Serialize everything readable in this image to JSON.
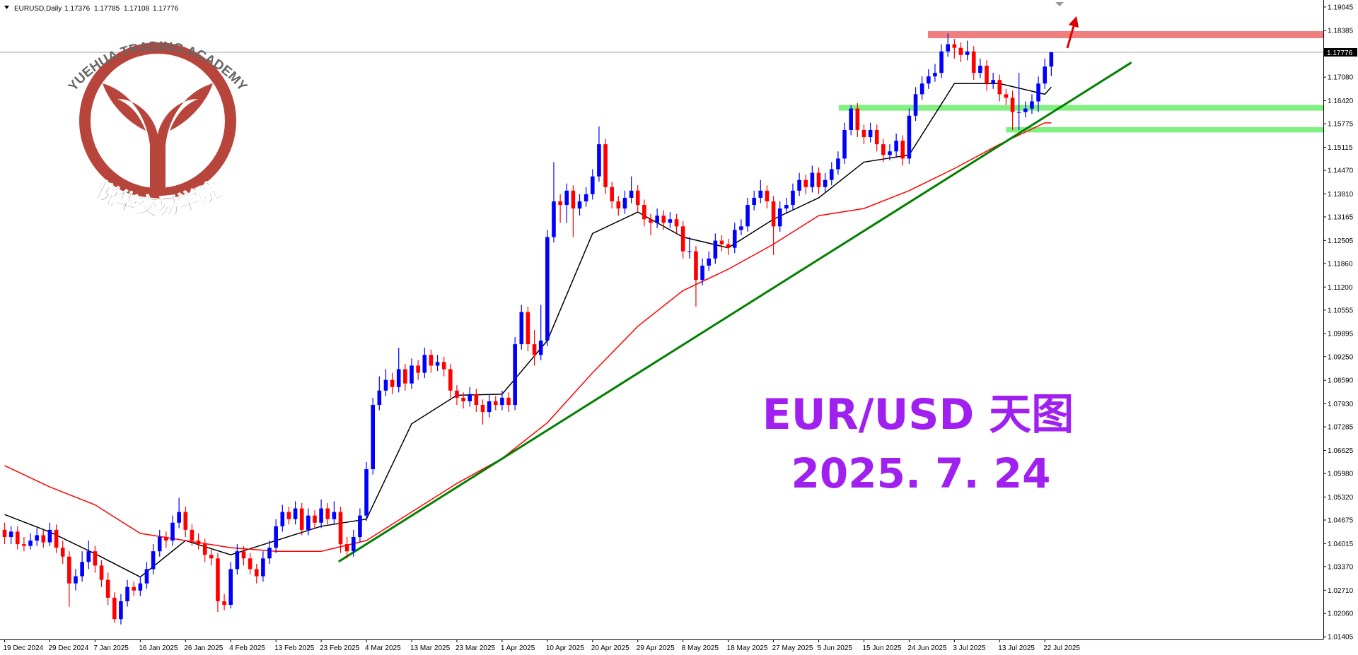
{
  "chart_data": {
    "type": "candlestick",
    "symbol_label": "EURUSD,Daily",
    "up_color": "#0000ff",
    "down_color": "#ff0000",
    "ylim": [
      1.0133,
      1.1924
    ],
    "yticks": [
      1.19045,
      1.18385,
      {
        "value": 1.1708,
        "label": "1.17080"
      },
      {
        "value": 1.1642,
        "label": "1.16420"
      },
      1.15775,
      1.15115,
      {
        "value": 1.1447,
        "label": "1.14470"
      },
      {
        "value": 1.1381,
        "label": "1.13810"
      },
      1.13165,
      1.12505,
      {
        "value": 1.1186,
        "label": "1.11860"
      },
      {
        "value": 1.112,
        "label": "1.11200"
      },
      1.10555,
      1.09895,
      {
        "value": 1.0925,
        "label": "1.09250"
      },
      {
        "value": 1.0859,
        "label": "1.08590"
      },
      {
        "value": 1.0793,
        "label": "1.07930"
      },
      1.07285,
      1.06625,
      {
        "value": 1.0598,
        "label": "1.05980"
      },
      {
        "value": 1.0532,
        "label": "1.05320"
      },
      1.04675,
      1.04015,
      {
        "value": 1.0337,
        "label": "1.03370"
      },
      {
        "value": 1.0271,
        "label": "1.02710"
      },
      {
        "value": 1.0206,
        "label": "1.02060"
      },
      1.01405
    ],
    "categories": [
      "19 Dec 2024",
      null,
      null,
      null,
      null,
      null,
      null,
      "29 Dec 2024",
      null,
      null,
      null,
      null,
      null,
      null,
      "7 Jan 2025",
      null,
      null,
      null,
      null,
      null,
      null,
      "16 Jan 2025",
      null,
      null,
      null,
      null,
      null,
      null,
      "26 Jan 2025",
      null,
      null,
      null,
      null,
      null,
      null,
      "4 Feb 2025",
      null,
      null,
      null,
      null,
      null,
      null,
      "13 Feb 2025",
      null,
      null,
      null,
      null,
      null,
      null,
      "23 Feb 2025",
      null,
      null,
      null,
      null,
      null,
      null,
      "4 Mar 2025",
      null,
      null,
      null,
      null,
      null,
      null,
      "13 Mar 2025",
      null,
      null,
      null,
      null,
      null,
      null,
      "23 Mar 2025",
      null,
      null,
      null,
      null,
      null,
      null,
      "1 Apr 2025",
      null,
      null,
      null,
      null,
      null,
      null,
      "10 Apr 2025",
      null,
      null,
      null,
      null,
      null,
      null,
      "20 Apr 2025",
      null,
      null,
      null,
      null,
      null,
      null,
      "29 Apr 2025",
      null,
      null,
      null,
      null,
      null,
      null,
      "8 May 2025",
      null,
      null,
      null,
      null,
      null,
      null,
      "18 May 2025",
      null,
      null,
      null,
      null,
      null,
      null,
      "27 May 2025",
      null,
      null,
      null,
      null,
      null,
      null,
      "5 Jun 2025",
      null,
      null,
      null,
      null,
      null,
      null,
      "15 Jun 2025",
      null,
      null,
      null,
      null,
      null,
      null,
      "24 Jun 2025",
      null,
      null,
      null,
      null,
      null,
      null,
      "3 Jul 2025",
      null,
      null,
      null,
      null,
      null,
      null,
      "13 Jul 2025",
      null,
      null,
      null,
      null,
      null,
      null,
      "22 Jul 2025",
      null
    ],
    "candles": [
      [
        1.044,
        1.046,
        1.04,
        1.042
      ],
      [
        1.042,
        1.045,
        1.04,
        1.0435
      ],
      [
        1.0435,
        1.045,
        1.0385,
        1.04
      ],
      [
        1.04,
        1.042,
        1.038,
        1.0395
      ],
      [
        1.0395,
        1.043,
        1.0385,
        1.041
      ],
      [
        1.041,
        1.0445,
        1.0395,
        1.0425
      ],
      [
        1.0425,
        1.044,
        1.039,
        1.0405
      ],
      [
        1.0405,
        1.046,
        1.0395,
        1.044
      ],
      [
        1.044,
        1.0455,
        1.0375,
        1.039
      ],
      [
        1.039,
        1.041,
        1.0345,
        1.0365
      ],
      [
        1.0365,
        1.038,
        1.0225,
        1.029
      ],
      [
        1.029,
        1.033,
        1.027,
        1.031
      ],
      [
        1.031,
        1.038,
        1.0295,
        1.035
      ],
      [
        1.035,
        1.041,
        1.033,
        1.038
      ],
      [
        1.038,
        1.0395,
        1.032,
        1.034
      ],
      [
        1.034,
        1.0355,
        1.028,
        1.03
      ],
      [
        1.03,
        1.032,
        1.023,
        1.025
      ],
      [
        1.025,
        1.0265,
        1.018,
        1.019
      ],
      [
        1.019,
        1.026,
        1.0175,
        1.024
      ],
      [
        1.024,
        1.03,
        1.0225,
        1.028
      ],
      [
        1.028,
        1.0295,
        1.0255,
        1.027
      ],
      [
        1.027,
        1.031,
        1.0255,
        1.029
      ],
      [
        1.029,
        1.035,
        1.0275,
        1.033
      ],
      [
        1.033,
        1.04,
        1.0315,
        1.038
      ],
      [
        1.038,
        1.044,
        1.0365,
        1.042
      ],
      [
        1.042,
        1.0435,
        1.039,
        1.041
      ],
      [
        1.041,
        1.048,
        1.0395,
        1.046
      ],
      [
        1.046,
        1.053,
        1.0445,
        1.049
      ],
      [
        1.049,
        1.0505,
        1.042,
        1.044
      ],
      [
        1.044,
        1.0455,
        1.0395,
        1.041
      ],
      [
        1.041,
        1.043,
        1.0385,
        1.04
      ],
      [
        1.04,
        1.0415,
        1.035,
        1.037
      ],
      [
        1.037,
        1.0385,
        1.034,
        1.036
      ],
      [
        1.036,
        1.0375,
        1.021,
        1.024
      ],
      [
        1.024,
        1.026,
        1.0215,
        1.023
      ],
      [
        1.023,
        1.035,
        1.022,
        1.033
      ],
      [
        1.033,
        1.04,
        1.0315,
        1.038
      ],
      [
        1.038,
        1.0395,
        1.034,
        1.036
      ],
      [
        1.036,
        1.0375,
        1.0315,
        1.033
      ],
      [
        1.033,
        1.0345,
        1.029,
        1.031
      ],
      [
        1.031,
        1.038,
        1.0295,
        1.036
      ],
      [
        1.036,
        1.041,
        1.0345,
        1.039
      ],
      [
        1.039,
        1.047,
        1.0375,
        1.045
      ],
      [
        1.045,
        1.051,
        1.0435,
        1.049
      ],
      [
        1.049,
        1.0505,
        1.0455,
        1.047
      ],
      [
        1.047,
        1.052,
        1.0455,
        1.05
      ],
      [
        1.05,
        1.0515,
        1.0425,
        1.044
      ],
      [
        1.044,
        1.05,
        1.0425,
        1.048
      ],
      [
        1.048,
        1.0495,
        1.0445,
        1.046
      ],
      [
        1.046,
        1.0525,
        1.0445,
        1.05
      ],
      [
        1.05,
        1.0515,
        1.0455,
        1.047
      ],
      [
        1.047,
        1.052,
        1.0455,
        1.049
      ],
      [
        1.049,
        1.0505,
        1.0375,
        1.04
      ],
      [
        1.04,
        1.042,
        1.036,
        1.038
      ],
      [
        1.038,
        1.044,
        1.0365,
        1.042
      ],
      [
        1.042,
        1.05,
        1.0405,
        1.048
      ],
      [
        1.048,
        1.063,
        1.0465,
        1.061
      ],
      [
        1.061,
        1.081,
        1.0595,
        1.079
      ],
      [
        1.079,
        1.087,
        1.0775,
        1.083
      ],
      [
        1.083,
        1.089,
        1.0815,
        1.086
      ],
      [
        1.086,
        1.088,
        1.082,
        1.084
      ],
      [
        1.084,
        1.095,
        1.0825,
        1.089
      ],
      [
        1.089,
        1.0905,
        1.083,
        1.085
      ],
      [
        1.085,
        1.092,
        1.0835,
        1.09
      ],
      [
        1.09,
        1.0915,
        1.086,
        1.088
      ],
      [
        1.088,
        1.095,
        1.0865,
        1.093
      ],
      [
        1.093,
        1.0945,
        1.088,
        1.09
      ],
      [
        1.09,
        1.093,
        1.0885,
        1.091
      ],
      [
        1.091,
        1.0925,
        1.087,
        1.089
      ],
      [
        1.089,
        1.0905,
        1.081,
        1.083
      ],
      [
        1.083,
        1.0845,
        1.079,
        1.081
      ],
      [
        1.081,
        1.0825,
        1.078,
        1.08
      ],
      [
        1.08,
        1.084,
        1.0785,
        1.082
      ],
      [
        1.082,
        1.0835,
        1.077,
        1.079
      ],
      [
        1.079,
        1.0805,
        1.0735,
        1.077
      ],
      [
        1.077,
        1.082,
        1.0755,
        1.08
      ],
      [
        1.08,
        1.0815,
        1.0775,
        1.079
      ],
      [
        1.079,
        1.083,
        1.0775,
        1.081
      ],
      [
        1.081,
        1.0825,
        1.077,
        1.079
      ],
      [
        1.079,
        1.098,
        1.0775,
        1.096
      ],
      [
        1.096,
        1.107,
        1.0945,
        1.105
      ],
      [
        1.105,
        1.1065,
        1.094,
        1.096
      ],
      [
        1.096,
        1.1,
        1.09,
        1.093
      ],
      [
        1.093,
        1.107,
        1.0915,
        1.097
      ],
      [
        1.097,
        1.128,
        1.0955,
        1.126
      ],
      [
        1.126,
        1.147,
        1.1245,
        1.136
      ],
      [
        1.136,
        1.138,
        1.13,
        1.135
      ],
      [
        1.135,
        1.141,
        1.13,
        1.139
      ],
      [
        1.139,
        1.1405,
        1.126,
        1.134
      ],
      [
        1.134,
        1.138,
        1.132,
        1.136
      ],
      [
        1.136,
        1.14,
        1.1345,
        1.138
      ],
      [
        1.138,
        1.145,
        1.1365,
        1.143
      ],
      [
        1.143,
        1.157,
        1.1415,
        1.152
      ],
      [
        1.152,
        1.1535,
        1.138,
        1.14
      ],
      [
        1.14,
        1.1415,
        1.134,
        1.136
      ],
      [
        1.136,
        1.1375,
        1.132,
        1.134
      ],
      [
        1.134,
        1.139,
        1.1325,
        1.137
      ],
      [
        1.137,
        1.143,
        1.1355,
        1.139
      ],
      [
        1.139,
        1.1405,
        1.133,
        1.135
      ],
      [
        1.135,
        1.1365,
        1.129,
        1.131
      ],
      [
        1.131,
        1.1325,
        1.1265,
        1.13
      ],
      [
        1.13,
        1.134,
        1.1285,
        1.132
      ],
      [
        1.132,
        1.1335,
        1.128,
        1.13
      ],
      [
        1.13,
        1.133,
        1.1285,
        1.131
      ],
      [
        1.131,
        1.1325,
        1.127,
        1.129
      ],
      [
        1.129,
        1.1305,
        1.12,
        1.122
      ],
      [
        1.122,
        1.126,
        1.12,
        1.122
      ],
      [
        1.122,
        1.1235,
        1.1065,
        1.114
      ],
      [
        1.114,
        1.12,
        1.1125,
        1.118
      ],
      [
        1.118,
        1.122,
        1.1165,
        1.12
      ],
      [
        1.12,
        1.127,
        1.1185,
        1.125
      ],
      [
        1.125,
        1.1265,
        1.122,
        1.124
      ],
      [
        1.124,
        1.1255,
        1.121,
        1.123
      ],
      [
        1.123,
        1.13,
        1.1215,
        1.128
      ],
      [
        1.128,
        1.131,
        1.1265,
        1.129
      ],
      [
        1.129,
        1.137,
        1.1275,
        1.135
      ],
      [
        1.135,
        1.139,
        1.1335,
        1.137
      ],
      [
        1.137,
        1.142,
        1.1355,
        1.139
      ],
      [
        1.139,
        1.1405,
        1.134,
        1.136
      ],
      [
        1.136,
        1.1375,
        1.121,
        1.129
      ],
      [
        1.129,
        1.136,
        1.1275,
        1.134
      ],
      [
        1.134,
        1.137,
        1.1325,
        1.135
      ],
      [
        1.135,
        1.141,
        1.1335,
        1.139
      ],
      [
        1.139,
        1.144,
        1.1375,
        1.142
      ],
      [
        1.142,
        1.1435,
        1.138,
        1.14
      ],
      [
        1.14,
        1.146,
        1.1385,
        1.144
      ],
      [
        1.144,
        1.1455,
        1.138,
        1.14
      ],
      [
        1.14,
        1.144,
        1.1385,
        1.142
      ],
      [
        1.142,
        1.147,
        1.1405,
        1.145
      ],
      [
        1.145,
        1.15,
        1.1435,
        1.148
      ],
      [
        1.148,
        1.158,
        1.1465,
        1.156
      ],
      [
        1.156,
        1.163,
        1.1545,
        1.162
      ],
      [
        1.162,
        1.1635,
        1.154,
        1.156
      ],
      [
        1.156,
        1.1575,
        1.152,
        1.154
      ],
      [
        1.154,
        1.158,
        1.1525,
        1.156
      ],
      [
        1.156,
        1.1575,
        1.15,
        1.152
      ],
      [
        1.152,
        1.1535,
        1.147,
        1.149
      ],
      [
        1.149,
        1.152,
        1.1475,
        1.15
      ],
      [
        1.15,
        1.155,
        1.1485,
        1.153
      ],
      [
        1.153,
        1.1545,
        1.146,
        1.148
      ],
      [
        1.148,
        1.162,
        1.1465,
        1.16
      ],
      [
        1.16,
        1.168,
        1.1585,
        1.166
      ],
      [
        1.166,
        1.171,
        1.1645,
        1.169
      ],
      [
        1.169,
        1.173,
        1.1675,
        1.171
      ],
      [
        1.171,
        1.1745,
        1.1695,
        1.172
      ],
      [
        1.172,
        1.18,
        1.1705,
        1.178
      ],
      [
        1.178,
        1.183,
        1.1765,
        1.18
      ],
      [
        1.18,
        1.1815,
        1.176,
        1.179
      ],
      [
        1.179,
        1.1805,
        1.175,
        1.177
      ],
      [
        1.177,
        1.181,
        1.1755,
        1.178
      ],
      [
        1.178,
        1.1795,
        1.17,
        1.172
      ],
      [
        1.172,
        1.176,
        1.1705,
        1.174
      ],
      [
        1.174,
        1.1755,
        1.167,
        1.169
      ],
      [
        1.169,
        1.172,
        1.1675,
        1.17
      ],
      [
        1.17,
        1.1715,
        1.164,
        1.166
      ],
      [
        1.166,
        1.1675,
        1.163,
        1.165
      ],
      [
        1.165,
        1.167,
        1.156,
        1.161
      ],
      [
        1.161,
        1.172,
        1.156,
        1.161
      ],
      [
        1.161,
        1.164,
        1.1595,
        1.162
      ],
      [
        1.162,
        1.166,
        1.1605,
        1.164
      ],
      [
        1.164,
        1.171,
        1.161,
        1.169
      ],
      [
        1.169,
        1.176,
        1.1675,
        1.17376
      ],
      [
        1.17376,
        1.17785,
        1.17108,
        1.17776
      ]
    ],
    "moving_averages": [
      {
        "color": "#000000",
        "x": [
          0,
          7,
          14,
          21,
          28,
          35,
          42,
          49,
          56,
          63,
          70,
          77,
          84,
          91,
          98,
          105,
          112,
          119,
          126,
          133,
          140,
          147,
          154,
          161,
          162
        ],
        "values": [
          1.0483,
          1.0434,
          1.0373,
          1.0308,
          1.041,
          1.037,
          1.041,
          1.045,
          1.047,
          1.0737,
          1.0817,
          1.082,
          1.097,
          1.127,
          1.133,
          1.126,
          1.123,
          1.131,
          1.137,
          1.147,
          1.149,
          1.169,
          1.169,
          1.166,
          1.168
        ]
      },
      {
        "color": "#ff0000",
        "x": [
          0,
          7,
          14,
          21,
          28,
          35,
          42,
          49,
          56,
          63,
          70,
          77,
          84,
          91,
          98,
          105,
          112,
          119,
          126,
          133,
          140,
          147,
          154,
          161,
          162
        ],
        "values": [
          1.062,
          1.056,
          1.051,
          1.043,
          1.041,
          1.039,
          1.038,
          1.038,
          1.041,
          1.049,
          1.057,
          1.064,
          1.074,
          1.088,
          1.101,
          1.111,
          1.117,
          1.124,
          1.132,
          1.134,
          1.139,
          1.1452,
          1.152,
          1.158,
          1.158
        ]
      }
    ],
    "trendline": {
      "color": "#008000",
      "x": [
        51.7,
        174.4
      ],
      "values": [
        1.0351,
        1.1749
      ]
    },
    "zones": [
      {
        "color": "#f08080",
        "x_start": 142.9,
        "range": [
          1.1817,
          1.1837
        ]
      },
      {
        "color": "#80f080",
        "x_start": 129.1,
        "range": [
          1.1614,
          1.163
        ]
      },
      {
        "color": "#80f080",
        "x_start": 155,
        "range": [
          1.1553,
          1.1568
        ]
      }
    ],
    "annotations": {
      "title": "EUR/USD 天图",
      "date": "2025. 7. 24"
    },
    "logo": {
      "arc_text": "YUEHUA TRADING ACADEMY",
      "name": "悦华交易学院"
    }
  }
}
